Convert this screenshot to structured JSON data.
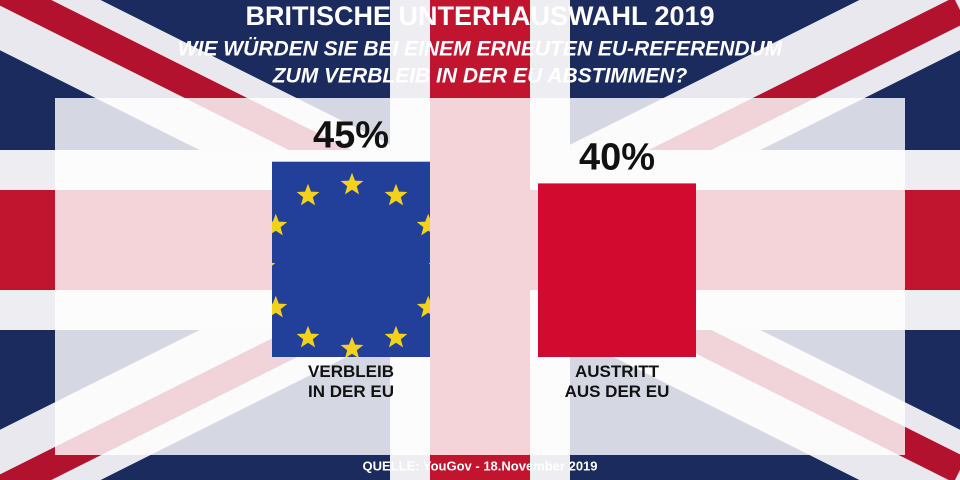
{
  "chart_data": {
    "type": "bar",
    "title": "BRITISCHE UNTERHAUSWAHL 2019",
    "subtitle": [
      "WIE WÜRDEN SIE BEI EINEM ERNEUTEN EU-REFERENDUM",
      "ZUM VERBLEIB IN DER EU ABSTIMMEN?"
    ],
    "categories": [
      "VERBLEIB\nIN DER EU",
      "AUSTRITT\nAUS DER EU"
    ],
    "values": [
      45,
      40
    ],
    "value_labels": [
      "45%",
      "40%"
    ],
    "colors": [
      "#22409a",
      "#d20a30"
    ],
    "source": "QUELLE: YouGov - 18.November 2019"
  }
}
